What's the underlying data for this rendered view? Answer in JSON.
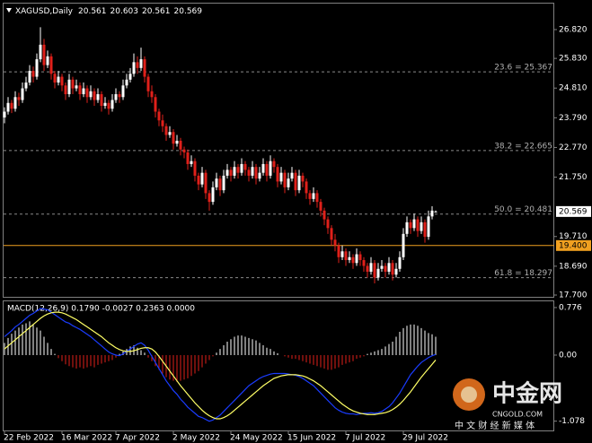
{
  "chart_data": [
    {
      "type": "candlestick",
      "header": {
        "symbol": "XAGUSD,Daily",
        "ohlc": [
          20.561,
          20.603,
          20.561,
          20.569
        ]
      },
      "up_color": "#ffffff",
      "down_color": "#e0201a",
      "ylim": [
        17.638,
        27.713
      ],
      "yticks": [
        {
          "value": 26.82,
          "label": "26.820"
        },
        {
          "value": 25.83,
          "label": "25.830"
        },
        {
          "value": 24.81,
          "label": "24.810"
        },
        {
          "value": 23.79,
          "label": "23.790"
        },
        {
          "value": 22.77,
          "label": "22.770"
        },
        {
          "value": 21.75,
          "label": "21.750"
        },
        {
          "value": 19.71,
          "label": "19.710"
        },
        {
          "value": 18.69,
          "label": "18.690"
        },
        {
          "value": 17.7,
          "label": "17.700"
        }
      ],
      "levels": [
        {
          "value": 25.367,
          "label": "23.6 = 25.367"
        },
        {
          "value": 22.665,
          "label": "38.2 = 22.665"
        },
        {
          "value": 20.481,
          "label": "50.0 = 20.481"
        },
        {
          "value": 18.297,
          "label": "61.8 = 18.297"
        }
      ],
      "hline": {
        "value": 19.4,
        "label": "19.400",
        "color": "#f0a020"
      },
      "price_marker": {
        "value": 20.569,
        "label": "20.569"
      },
      "candles": [
        [
          23.8,
          24.15,
          23.6,
          24.0
        ],
        [
          24.0,
          24.5,
          23.9,
          24.3
        ],
        [
          24.3,
          24.4,
          23.95,
          24.1
        ],
        [
          24.1,
          24.7,
          24.0,
          24.5
        ],
        [
          24.5,
          24.65,
          24.2,
          24.4
        ],
        [
          24.4,
          25.0,
          24.3,
          24.8
        ],
        [
          24.8,
          25.2,
          24.7,
          25.0
        ],
        [
          25.0,
          25.6,
          24.9,
          25.4
        ],
        [
          25.4,
          25.55,
          25.0,
          25.2
        ],
        [
          25.2,
          26.0,
          25.1,
          25.8
        ],
        [
          25.8,
          26.9,
          25.7,
          26.3
        ],
        [
          26.3,
          26.5,
          25.4,
          25.6
        ],
        [
          25.6,
          26.1,
          25.5,
          25.9
        ],
        [
          25.9,
          26.0,
          25.1,
          25.3
        ],
        [
          25.3,
          25.4,
          24.8,
          25.0
        ],
        [
          25.0,
          25.4,
          24.9,
          25.2
        ],
        [
          25.2,
          25.3,
          24.7,
          24.9
        ],
        [
          24.9,
          25.0,
          24.4,
          24.6
        ],
        [
          24.6,
          25.3,
          24.5,
          25.1
        ],
        [
          25.1,
          25.2,
          24.6,
          24.8
        ],
        [
          24.8,
          25.1,
          24.7,
          24.9
        ],
        [
          24.9,
          25.0,
          24.4,
          24.6
        ],
        [
          24.6,
          25.0,
          24.5,
          24.8
        ],
        [
          24.8,
          24.9,
          24.3,
          24.5
        ],
        [
          24.5,
          24.9,
          24.4,
          24.7
        ],
        [
          24.7,
          24.8,
          24.2,
          24.4
        ],
        [
          24.4,
          24.8,
          24.3,
          24.6
        ],
        [
          24.6,
          24.7,
          24.0,
          24.2
        ],
        [
          24.2,
          24.5,
          24.1,
          24.3
        ],
        [
          24.3,
          24.4,
          23.9,
          24.1
        ],
        [
          24.1,
          24.6,
          24.0,
          24.4
        ],
        [
          24.4,
          24.8,
          24.3,
          24.6
        ],
        [
          24.6,
          24.7,
          24.3,
          24.5
        ],
        [
          24.5,
          25.1,
          24.4,
          24.9
        ],
        [
          24.9,
          25.3,
          24.8,
          25.1
        ],
        [
          25.1,
          25.5,
          25.0,
          25.3
        ],
        [
          25.3,
          26.0,
          25.2,
          25.7
        ],
        [
          25.7,
          25.9,
          25.3,
          25.5
        ],
        [
          25.5,
          26.2,
          25.4,
          25.8
        ],
        [
          25.8,
          25.9,
          25.0,
          25.2
        ],
        [
          25.2,
          25.3,
          24.5,
          24.7
        ],
        [
          24.7,
          24.9,
          24.3,
          24.5
        ],
        [
          24.5,
          24.6,
          23.8,
          24.0
        ],
        [
          24.0,
          24.1,
          23.5,
          23.7
        ],
        [
          23.7,
          23.9,
          23.3,
          23.5
        ],
        [
          23.5,
          23.6,
          23.0,
          23.2
        ],
        [
          23.2,
          23.5,
          23.1,
          23.3
        ],
        [
          23.3,
          23.4,
          22.7,
          22.9
        ],
        [
          22.9,
          23.2,
          22.8,
          23.0
        ],
        [
          23.0,
          23.1,
          22.5,
          22.7
        ],
        [
          22.7,
          22.8,
          22.4,
          22.6
        ],
        [
          22.6,
          22.7,
          22.0,
          22.2
        ],
        [
          22.2,
          22.5,
          22.1,
          22.3
        ],
        [
          22.3,
          22.4,
          21.6,
          21.8
        ],
        [
          21.8,
          21.9,
          21.3,
          21.5
        ],
        [
          21.5,
          22.1,
          21.4,
          21.9
        ],
        [
          21.9,
          22.0,
          21.0,
          21.2
        ],
        [
          21.2,
          21.3,
          20.6,
          20.9
        ],
        [
          20.9,
          21.6,
          20.8,
          21.4
        ],
        [
          21.4,
          21.9,
          21.3,
          21.7
        ],
        [
          21.7,
          21.8,
          21.1,
          21.3
        ],
        [
          21.3,
          22.0,
          21.2,
          21.8
        ],
        [
          21.8,
          22.2,
          21.7,
          22.0
        ],
        [
          22.0,
          22.1,
          21.6,
          21.8
        ],
        [
          21.8,
          22.3,
          21.7,
          22.1
        ],
        [
          22.1,
          22.2,
          21.7,
          21.9
        ],
        [
          21.9,
          22.4,
          21.8,
          22.2
        ],
        [
          22.2,
          22.3,
          21.8,
          22.0
        ],
        [
          22.0,
          22.1,
          21.6,
          21.8
        ],
        [
          21.8,
          22.3,
          21.7,
          22.1
        ],
        [
          22.1,
          22.2,
          21.5,
          21.7
        ],
        [
          21.7,
          22.1,
          21.6,
          21.9
        ],
        [
          21.9,
          22.4,
          21.8,
          22.2
        ],
        [
          22.2,
          22.3,
          21.6,
          21.8
        ],
        [
          21.8,
          22.5,
          21.7,
          22.3
        ],
        [
          22.3,
          22.4,
          21.9,
          22.1
        ],
        [
          22.1,
          22.2,
          21.4,
          21.6
        ],
        [
          21.6,
          22.1,
          21.5,
          21.9
        ],
        [
          21.9,
          22.0,
          21.2,
          21.4
        ],
        [
          21.4,
          21.9,
          21.3,
          21.7
        ],
        [
          21.7,
          22.1,
          21.6,
          21.9
        ],
        [
          21.9,
          22.0,
          21.1,
          21.3
        ],
        [
          21.3,
          22.0,
          21.2,
          21.8
        ],
        [
          21.8,
          21.9,
          21.4,
          21.6
        ],
        [
          21.6,
          21.7,
          21.0,
          21.2
        ],
        [
          21.2,
          21.3,
          20.8,
          21.0
        ],
        [
          21.0,
          21.4,
          20.9,
          21.2
        ],
        [
          21.2,
          21.3,
          20.7,
          20.9
        ],
        [
          20.9,
          21.0,
          20.4,
          20.6
        ],
        [
          20.6,
          20.7,
          20.1,
          20.3
        ],
        [
          20.3,
          20.4,
          19.8,
          20.0
        ],
        [
          20.0,
          20.1,
          19.4,
          19.6
        ],
        [
          19.6,
          19.8,
          19.2,
          19.4
        ],
        [
          19.4,
          19.5,
          18.8,
          19.0
        ],
        [
          19.0,
          19.4,
          18.9,
          19.2
        ],
        [
          19.2,
          19.3,
          18.7,
          18.9
        ],
        [
          18.9,
          19.2,
          18.8,
          19.0
        ],
        [
          19.0,
          19.1,
          18.6,
          18.8
        ],
        [
          18.8,
          19.3,
          18.7,
          19.1
        ],
        [
          19.1,
          19.2,
          18.7,
          18.9
        ],
        [
          18.9,
          19.0,
          18.5,
          18.7
        ],
        [
          18.7,
          18.8,
          18.3,
          18.5
        ],
        [
          18.5,
          19.0,
          18.4,
          18.8
        ],
        [
          18.8,
          18.9,
          18.1,
          18.3
        ],
        [
          18.3,
          18.8,
          18.2,
          18.6
        ],
        [
          18.6,
          18.9,
          18.5,
          18.7
        ],
        [
          18.7,
          18.8,
          18.3,
          18.5
        ],
        [
          18.5,
          19.0,
          18.4,
          18.8
        ],
        [
          18.8,
          18.9,
          18.2,
          18.4
        ],
        [
          18.4,
          18.8,
          18.3,
          18.6
        ],
        [
          18.6,
          19.2,
          18.5,
          19.0
        ],
        [
          19.0,
          20.0,
          18.9,
          19.8
        ],
        [
          19.8,
          20.4,
          19.7,
          20.2
        ],
        [
          20.2,
          20.3,
          19.8,
          20.0
        ],
        [
          20.0,
          20.5,
          19.9,
          20.3
        ],
        [
          20.3,
          20.4,
          19.7,
          19.9
        ],
        [
          19.9,
          20.4,
          19.8,
          20.2
        ],
        [
          20.2,
          20.3,
          19.5,
          19.7
        ],
        [
          19.7,
          20.6,
          19.6,
          20.4
        ],
        [
          20.4,
          20.75,
          20.3,
          20.6
        ],
        [
          20.561,
          20.603,
          20.561,
          20.569
        ]
      ]
    },
    {
      "type": "macd",
      "label": "MACD(12,26,9) 0.1790 -0.0027 0.2363 0.0000",
      "ylim": [
        -1.23,
        0.878
      ],
      "yticks": [
        0.776,
        {
          "value": 0,
          "label": "0.00"
        },
        -1.078
      ],
      "xticks": [
        {
          "value": 0,
          "label": "22 Feb 2022"
        },
        {
          "value": 16,
          "label": "16 Mar 2022"
        },
        {
          "value": 31,
          "label": "7 Apr 2022"
        },
        {
          "value": 47,
          "label": "2 May 2022"
        },
        {
          "value": 63,
          "label": "24 May 2022"
        },
        {
          "value": 79,
          "label": "15 Jun 2022"
        },
        {
          "value": 95,
          "label": "7 Jul 2022"
        },
        {
          "value": 111,
          "label": "29 Jul 2022"
        }
      ],
      "histogram": {
        "up_color": "#ffffff",
        "down_color": "#e0201a",
        "values": [
          0.2,
          0.28,
          0.35,
          0.4,
          0.45,
          0.5,
          0.52,
          0.55,
          0.5,
          0.45,
          0.4,
          0.3,
          0.2,
          0.1,
          0.02,
          -0.05,
          -0.1,
          -0.15,
          -0.18,
          -0.2,
          -0.22,
          -0.2,
          -0.22,
          -0.2,
          -0.18,
          -0.2,
          -0.16,
          -0.14,
          -0.12,
          -0.1,
          -0.08,
          -0.04,
          0.02,
          0.06,
          0.1,
          0.14,
          0.16,
          0.12,
          0.08,
          0.04,
          -0.04,
          -0.1,
          -0.18,
          -0.24,
          -0.3,
          -0.36,
          -0.4,
          -0.42,
          -0.44,
          -0.42,
          -0.4,
          -0.38,
          -0.34,
          -0.3,
          -0.26,
          -0.2,
          -0.14,
          -0.08,
          -0.02,
          0.04,
          0.1,
          0.16,
          0.22,
          0.26,
          0.3,
          0.32,
          0.32,
          0.3,
          0.28,
          0.26,
          0.24,
          0.2,
          0.16,
          0.12,
          0.1,
          0.06,
          0.03,
          0.0,
          -0.02,
          -0.04,
          -0.06,
          -0.06,
          -0.08,
          -0.1,
          -0.12,
          -0.14,
          -0.16,
          -0.18,
          -0.2,
          -0.22,
          -0.24,
          -0.24,
          -0.22,
          -0.2,
          -0.16,
          -0.14,
          -0.12,
          -0.1,
          -0.06,
          -0.04,
          -0.02,
          0.02,
          0.04,
          0.06,
          0.08,
          0.1,
          0.14,
          0.18,
          0.22,
          0.3,
          0.38,
          0.44,
          0.48,
          0.5,
          0.5,
          0.48,
          0.44,
          0.4,
          0.36,
          0.34,
          0.3
        ]
      },
      "series": [
        {
          "color": "#1a3cff",
          "values": [
            0.3,
            0.35,
            0.4,
            0.46,
            0.5,
            0.55,
            0.6,
            0.65,
            0.68,
            0.72,
            0.76,
            0.75,
            0.74,
            0.7,
            0.66,
            0.62,
            0.58,
            0.54,
            0.52,
            0.48,
            0.45,
            0.42,
            0.38,
            0.34,
            0.3,
            0.25,
            0.2,
            0.15,
            0.1,
            0.05,
            0.02,
            0.0,
            -0.01,
            0.02,
            0.06,
            0.1,
            0.14,
            0.18,
            0.2,
            0.16,
            0.08,
            -0.02,
            -0.12,
            -0.22,
            -0.32,
            -0.42,
            -0.5,
            -0.58,
            -0.64,
            -0.72,
            -0.78,
            -0.85,
            -0.9,
            -0.95,
            -1.0,
            -1.02,
            -1.05,
            -1.08,
            -1.06,
            -1.02,
            -0.98,
            -0.92,
            -0.86,
            -0.8,
            -0.74,
            -0.68,
            -0.62,
            -0.56,
            -0.5,
            -0.46,
            -0.42,
            -0.38,
            -0.35,
            -0.33,
            -0.31,
            -0.3,
            -0.3,
            -0.3,
            -0.3,
            -0.31,
            -0.32,
            -0.33,
            -0.35,
            -0.38,
            -0.42,
            -0.46,
            -0.5,
            -0.56,
            -0.62,
            -0.68,
            -0.74,
            -0.8,
            -0.86,
            -0.9,
            -0.93,
            -0.95,
            -0.96,
            -0.96,
            -0.97,
            -0.96,
            -0.95,
            -0.95,
            -0.94,
            -0.95,
            -0.94,
            -0.92,
            -0.88,
            -0.84,
            -0.78,
            -0.7,
            -0.62,
            -0.52,
            -0.42,
            -0.32,
            -0.25,
            -0.18,
            -0.12,
            -0.08,
            -0.04,
            -0.01,
            0.01
          ]
        },
        {
          "color": "#ffff66",
          "values": [
            0.1,
            0.15,
            0.2,
            0.25,
            0.3,
            0.35,
            0.4,
            0.45,
            0.5,
            0.55,
            0.6,
            0.64,
            0.67,
            0.69,
            0.7,
            0.7,
            0.69,
            0.67,
            0.64,
            0.61,
            0.58,
            0.54,
            0.5,
            0.46,
            0.42,
            0.38,
            0.34,
            0.3,
            0.25,
            0.2,
            0.16,
            0.12,
            0.09,
            0.07,
            0.06,
            0.06,
            0.07,
            0.09,
            0.11,
            0.12,
            0.12,
            0.1,
            0.05,
            -0.02,
            -0.1,
            -0.18,
            -0.26,
            -0.34,
            -0.42,
            -0.5,
            -0.57,
            -0.64,
            -0.71,
            -0.78,
            -0.84,
            -0.9,
            -0.95,
            -0.99,
            -1.02,
            -1.04,
            -1.04,
            -1.02,
            -0.99,
            -0.95,
            -0.9,
            -0.85,
            -0.8,
            -0.75,
            -0.7,
            -0.65,
            -0.6,
            -0.55,
            -0.5,
            -0.46,
            -0.42,
            -0.38,
            -0.36,
            -0.34,
            -0.33,
            -0.32,
            -0.32,
            -0.32,
            -0.33,
            -0.34,
            -0.36,
            -0.39,
            -0.42,
            -0.46,
            -0.5,
            -0.55,
            -0.6,
            -0.65,
            -0.7,
            -0.75,
            -0.8,
            -0.84,
            -0.88,
            -0.91,
            -0.93,
            -0.95,
            -0.96,
            -0.97,
            -0.97,
            -0.97,
            -0.96,
            -0.95,
            -0.94,
            -0.92,
            -0.89,
            -0.85,
            -0.8,
            -0.74,
            -0.67,
            -0.6,
            -0.52,
            -0.44,
            -0.36,
            -0.29,
            -0.22,
            -0.15,
            -0.08
          ]
        }
      ]
    }
  ],
  "watermark": {
    "name": "中金网",
    "site": "CNGOLD.COM",
    "slogan": "中 文 财 经 新 媒 体"
  }
}
